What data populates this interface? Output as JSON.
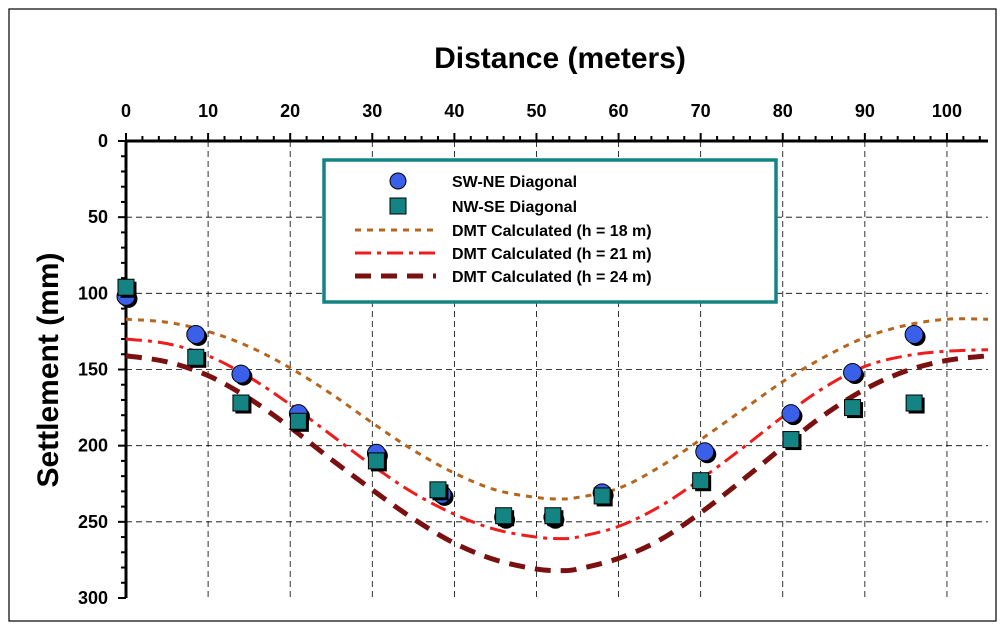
{
  "chart_data": {
    "type": "scatter",
    "title": "Distance (meters)",
    "xlabel": "Distance (meters)",
    "ylabel": "Settlement (mm)",
    "xlim": [
      0,
      105
    ],
    "ylim": [
      0,
      300
    ],
    "y_inverted": true,
    "x_axis_position": "top",
    "x_ticks": [
      0,
      10,
      20,
      30,
      40,
      50,
      60,
      70,
      80,
      90,
      100
    ],
    "y_ticks": [
      0,
      50,
      100,
      150,
      200,
      250,
      300
    ],
    "grid": true,
    "legend_position": "top-center",
    "series": [
      {
        "name": "SW-NE Diagonal",
        "kind": "points",
        "marker": "circle",
        "color": "#3a5fe8",
        "x": [
          0,
          8.5,
          14,
          21,
          30.5,
          38.5,
          46,
          52,
          58,
          70.5,
          81,
          88.5,
          96
        ],
        "y": [
          102,
          127,
          153,
          179,
          205,
          232,
          247,
          247,
          231,
          204,
          179,
          152,
          127
        ]
      },
      {
        "name": "NW-SE Diagonal",
        "kind": "points",
        "marker": "square",
        "color": "#138383",
        "x": [
          0,
          8.5,
          14,
          21,
          30.5,
          38,
          46,
          52,
          58,
          70,
          81,
          88.5,
          96
        ],
        "y": [
          96,
          142,
          172,
          184,
          210,
          229,
          246,
          246,
          233,
          223,
          196,
          175,
          172
        ]
      },
      {
        "name": "DMT Calculated (h = 18 m)",
        "kind": "curve",
        "dash": "short",
        "color": "#b5651d",
        "x": [
          0,
          5,
          10,
          15,
          20,
          25,
          30,
          35,
          40,
          45,
          50,
          53,
          55,
          60,
          65,
          70,
          75,
          80,
          85,
          90,
          95,
          100,
          105
        ],
        "y": [
          117,
          119,
          125,
          135,
          149,
          166,
          185,
          203,
          218,
          229,
          234,
          235,
          234,
          228,
          214,
          196,
          177,
          158,
          142,
          129,
          121,
          117,
          117
        ]
      },
      {
        "name": "DMT Calculated (h = 21 m)",
        "kind": "curve",
        "dash": "dashdot",
        "color": "#ee1c1c",
        "x": [
          0,
          5,
          10,
          15,
          20,
          25,
          30,
          35,
          40,
          45,
          50,
          53,
          55,
          60,
          65,
          70,
          75,
          80,
          85,
          90,
          95,
          100,
          105
        ],
        "y": [
          130,
          133,
          141,
          155,
          173,
          193,
          213,
          231,
          245,
          255,
          260,
          261,
          260,
          253,
          240,
          222,
          202,
          181,
          162,
          148,
          141,
          138,
          137
        ]
      },
      {
        "name": "DMT Calculated (h = 24 m)",
        "kind": "curve",
        "dash": "long",
        "color": "#7a1010",
        "x": [
          0,
          5,
          10,
          15,
          20,
          25,
          30,
          35,
          40,
          45,
          50,
          53,
          55,
          60,
          65,
          70,
          75,
          80,
          85,
          90,
          95,
          100,
          105
        ],
        "y": [
          141,
          145,
          154,
          169,
          188,
          209,
          229,
          248,
          264,
          275,
          281,
          282,
          281,
          274,
          262,
          244,
          223,
          201,
          180,
          163,
          151,
          144,
          141
        ]
      }
    ]
  },
  "colors": {
    "legend_border": "#138383",
    "grid": "#000000",
    "frame": "#000000"
  }
}
